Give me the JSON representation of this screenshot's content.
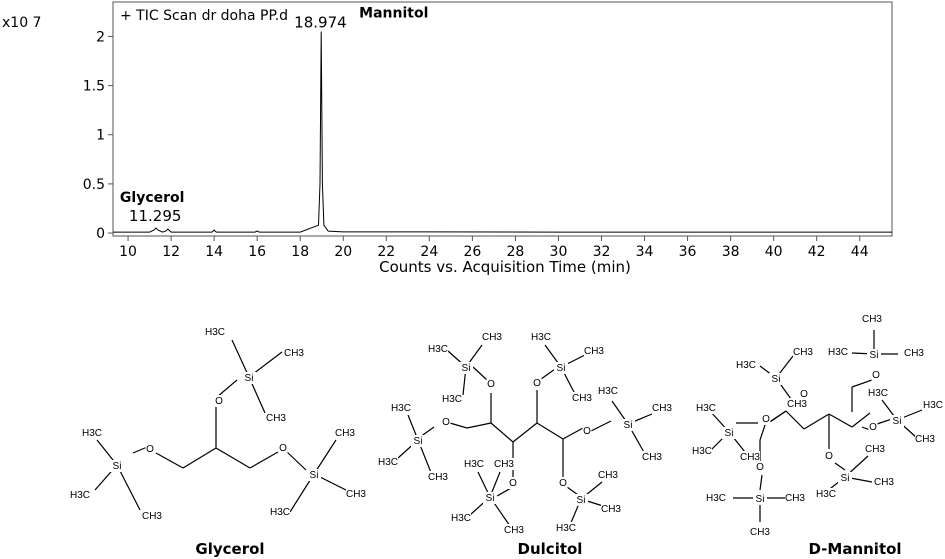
{
  "chart_data": {
    "type": "line",
    "title": "+ TIC Scan dr doha PP.d",
    "xlabel": "Counts vs. Acquisition Time (min)",
    "ylabel": "",
    "y_multiplier": "x10 7",
    "xlim": [
      9.3,
      45.5
    ],
    "ylim": [
      -0.03,
      2.35
    ],
    "xticks": [
      10,
      12,
      14,
      16,
      18,
      20,
      22,
      24,
      26,
      28,
      30,
      32,
      34,
      36,
      38,
      40,
      42,
      44
    ],
    "yticks": [
      0,
      0.5,
      1,
      1.5,
      2
    ],
    "ytick_labels": [
      "0",
      "0.5",
      "1",
      "1.5",
      "2"
    ],
    "grid": false,
    "series": [
      {
        "x": [
          9.3,
          11.0,
          11.2,
          11.295,
          11.4,
          11.6,
          11.75,
          11.85,
          12.0,
          13.9,
          14.0,
          14.1,
          15.9,
          16.0,
          16.1,
          18.0,
          18.85,
          18.92,
          18.974,
          19.03,
          19.1,
          19.3,
          20.0,
          24.0,
          30.0,
          40.0,
          45.5
        ],
        "y": [
          0.01,
          0.01,
          0.03,
          0.05,
          0.03,
          0.01,
          0.02,
          0.04,
          0.01,
          0.01,
          0.03,
          0.01,
          0.01,
          0.02,
          0.01,
          0.01,
          0.08,
          0.5,
          2.05,
          0.5,
          0.08,
          0.02,
          0.012,
          0.012,
          0.01,
          0.01,
          0.01
        ]
      }
    ],
    "annotations": [
      {
        "x": 11.295,
        "label": "11.295",
        "compound": "Glycerol"
      },
      {
        "x": 18.974,
        "label": "18.974",
        "compound": "Mannitol"
      }
    ]
  },
  "structures": [
    {
      "name": "Glycerol"
    },
    {
      "name": "Dulcitol"
    },
    {
      "name": "D-Mannitol"
    }
  ],
  "atom_labels": {
    "si": "Si",
    "o": "O",
    "h3c": "H3C",
    "ch3": "CH3"
  }
}
